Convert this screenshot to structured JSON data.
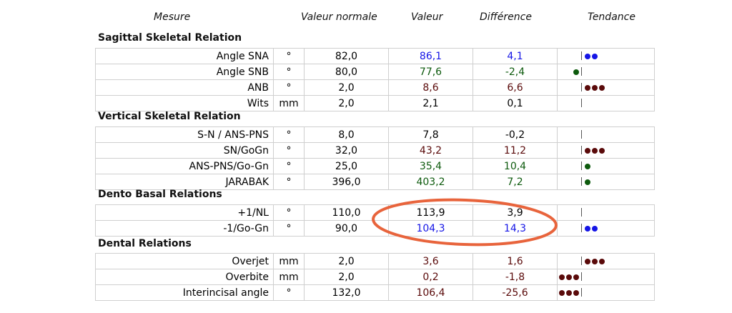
{
  "header": {
    "mesure": "Mesure",
    "valeur_normale": "Valeur normale",
    "valeur": "Valeur",
    "difference": "Différence",
    "tendance": "Tendance"
  },
  "colors": {
    "blue": "#1515e6",
    "green": "#0d5a0d",
    "maroon": "#5a0a0a",
    "black": "#000000",
    "highlight": "#e8643c"
  },
  "sections": [
    {
      "title": "Sagittal Skeletal Relation",
      "rows": [
        {
          "name": "Angle SNA",
          "unit": "°",
          "normal": "82,0",
          "value": "86,1",
          "diff": "4,1",
          "color": "blue",
          "dir": "right",
          "dots": 2
        },
        {
          "name": "Angle SNB",
          "unit": "°",
          "normal": "80,0",
          "value": "77,6",
          "diff": "-2,4",
          "color": "green",
          "dir": "left",
          "dots": 1
        },
        {
          "name": "ANB",
          "unit": "°",
          "normal": "2,0",
          "value": "8,6",
          "diff": "6,6",
          "color": "maroon",
          "dir": "right",
          "dots": 3
        },
        {
          "name": "Wits",
          "unit": "mm",
          "normal": "2,0",
          "value": "2,1",
          "diff": "0,1",
          "color": "black",
          "dir": "right",
          "dots": 0
        }
      ]
    },
    {
      "title": "Vertical Skeletal Relation",
      "rows": [
        {
          "name": "S-N / ANS-PNS",
          "unit": "°",
          "normal": "8,0",
          "value": "7,8",
          "diff": "-0,2",
          "color": "black",
          "dir": "right",
          "dots": 0
        },
        {
          "name": "SN/GoGn",
          "unit": "°",
          "normal": "32,0",
          "value": "43,2",
          "diff": "11,2",
          "color": "maroon",
          "dir": "right",
          "dots": 3
        },
        {
          "name": "ANS-PNS/Go-Gn",
          "unit": "°",
          "normal": "25,0",
          "value": "35,4",
          "diff": "10,4",
          "color": "green",
          "dir": "right",
          "dots": 1
        },
        {
          "name": "JARABAK",
          "unit": "°",
          "normal": "396,0",
          "value": "403,2",
          "diff": "7,2",
          "color": "green",
          "dir": "right",
          "dots": 1
        }
      ]
    },
    {
      "title": "Dento Basal Relations",
      "rows": [
        {
          "name": "+1/NL",
          "unit": "°",
          "normal": "110,0",
          "value": "113,9",
          "diff": "3,9",
          "color": "black",
          "dir": "right",
          "dots": 0
        },
        {
          "name": "-1/Go-Gn",
          "unit": "°",
          "normal": "90,0",
          "value": "104,3",
          "diff": "14,3",
          "color": "blue",
          "dir": "right",
          "dots": 2
        }
      ]
    },
    {
      "title": "Dental Relations",
      "rows": [
        {
          "name": "Overjet",
          "unit": "mm",
          "normal": "2,0",
          "value": "3,6",
          "diff": "1,6",
          "color": "maroon",
          "dir": "right",
          "dots": 3
        },
        {
          "name": "Overbite",
          "unit": "mm",
          "normal": "2,0",
          "value": "0,2",
          "diff": "-1,8",
          "color": "maroon",
          "dir": "left",
          "dots": 3
        },
        {
          "name": "Interincisal angle",
          "unit": "°",
          "normal": "132,0",
          "value": "106,4",
          "diff": "-25,6",
          "color": "maroon",
          "dir": "left",
          "dots": 3
        }
      ]
    }
  ]
}
